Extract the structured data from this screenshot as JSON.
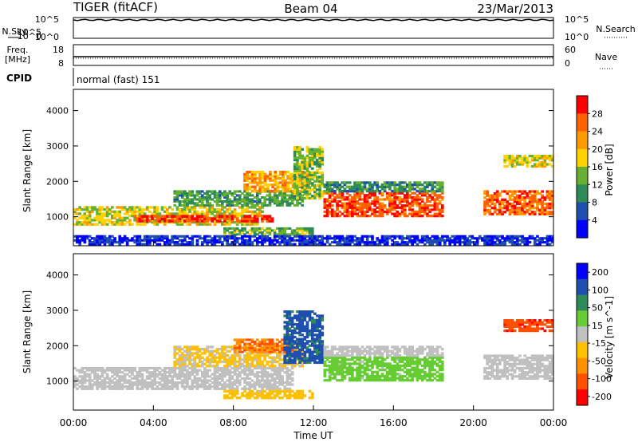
{
  "header": {
    "radar": "TIGER (fitACF)",
    "beam": "Beam 04",
    "date": "23/Mar/2013"
  },
  "nsky_panel": {
    "left_label": "N.Sky",
    "right_label": "N.Search",
    "left_ticks": [
      "10^5",
      "10^0"
    ],
    "right_ticks": [
      "10^5",
      "10^0"
    ]
  },
  "freq_panel": {
    "left_label_line1": "Freq.",
    "left_label_line2": "[MHz]",
    "right_label": "Nave",
    "left_ticks": [
      "18",
      "8"
    ],
    "right_ticks": [
      "60",
      "0"
    ]
  },
  "cpid_panel": {
    "label": "CPID",
    "text": "normal (fast) 151"
  },
  "colors": {
    "power": [
      "#0000ff",
      "#1f4fae",
      "#2e8b57",
      "#66b032",
      "#ffd200",
      "#ff9a00",
      "#ff6000",
      "#ff0000"
    ],
    "velocity": [
      "#0000ff",
      "#1f4fae",
      "#2e8b57",
      "#66cc33",
      "#c0c0c0",
      "#ffc000",
      "#ff9000",
      "#ff5000",
      "#ff0000"
    ]
  },
  "chart_data": [
    {
      "type": "heatmap",
      "name": "power",
      "ylabel": "Slant Range [km]",
      "ylim": [
        180,
        4600
      ],
      "yticks": [
        "1000",
        "2000",
        "3000",
        "4000"
      ],
      "xticks": [
        "00:00",
        "04:00",
        "08:00",
        "12:00",
        "16:00",
        "20:00",
        "00:00"
      ],
      "colorbar": {
        "label": "Power [dB]",
        "ticks": [
          "4",
          "8",
          "12",
          "16",
          "20",
          "24",
          "28"
        ],
        "range": [
          0,
          32
        ]
      },
      "bands": [
        {
          "t0": 0.0,
          "t1": 9.5,
          "r0": 760,
          "r1": 1300,
          "level": 0.55
        },
        {
          "t0": 3.0,
          "t1": 10.0,
          "r0": 850,
          "r1": 1050,
          "level": 0.95
        },
        {
          "t0": 5.0,
          "t1": 11.5,
          "r0": 1300,
          "r1": 1750,
          "level": 0.35
        },
        {
          "t0": 8.5,
          "t1": 11.8,
          "r0": 1700,
          "r1": 2300,
          "level": 0.7
        },
        {
          "t0": 11.0,
          "t1": 12.5,
          "r0": 1500,
          "r1": 3000,
          "level": 0.45
        },
        {
          "t0": 12.5,
          "t1": 18.5,
          "r0": 1000,
          "r1": 1700,
          "level": 0.9
        },
        {
          "t0": 12.5,
          "t1": 18.5,
          "r0": 1700,
          "r1": 2000,
          "level": 0.3
        },
        {
          "t0": 20.5,
          "t1": 24.0,
          "r0": 1050,
          "r1": 1750,
          "level": 0.85
        },
        {
          "t0": 21.5,
          "t1": 24.0,
          "r0": 2400,
          "r1": 2750,
          "level": 0.55
        },
        {
          "t0": 7.5,
          "t1": 12.0,
          "r0": 480,
          "r1": 700,
          "level": 0.4
        },
        {
          "t0": 0.0,
          "t1": 24.0,
          "r0": 200,
          "r1": 480,
          "level": 0.05
        }
      ]
    },
    {
      "type": "heatmap",
      "name": "velocity",
      "ylabel": "Slant Range [km]",
      "xlabel": "Time UT",
      "ylim": [
        180,
        4600
      ],
      "yticks": [
        "1000",
        "2000",
        "3000",
        "4000"
      ],
      "xticks": [
        "00:00",
        "04:00",
        "08:00",
        "12:00",
        "16:00",
        "20:00",
        "00:00"
      ],
      "colorbar": {
        "label": "Velocity [m s^-1]",
        "ticks": [
          "200",
          "100",
          "50",
          "15",
          "-15",
          "-50",
          "-100",
          "-200"
        ],
        "range": [
          -250,
          250
        ]
      },
      "bands": [
        {
          "t0": 0.0,
          "t1": 11.0,
          "r0": 760,
          "r1": 1400,
          "value": 0
        },
        {
          "t0": 5.0,
          "t1": 11.5,
          "r0": 1400,
          "r1": 2000,
          "value": -40
        },
        {
          "t0": 8.0,
          "t1": 11.0,
          "r0": 1800,
          "r1": 2200,
          "value": -150
        },
        {
          "t0": 10.5,
          "t1": 12.5,
          "r0": 1500,
          "r1": 3000,
          "value": 180
        },
        {
          "t0": 12.5,
          "t1": 18.5,
          "r0": 1000,
          "r1": 1700,
          "value": 60
        },
        {
          "t0": 12.5,
          "t1": 18.5,
          "r0": 1700,
          "r1": 2000,
          "value": 0
        },
        {
          "t0": 20.5,
          "t1": 24.0,
          "r0": 1050,
          "r1": 1750,
          "value": 0
        },
        {
          "t0": 21.5,
          "t1": 24.0,
          "r0": 2400,
          "r1": 2750,
          "value": -200
        },
        {
          "t0": 7.5,
          "t1": 12.0,
          "r0": 500,
          "r1": 750,
          "value": -60
        }
      ]
    }
  ]
}
